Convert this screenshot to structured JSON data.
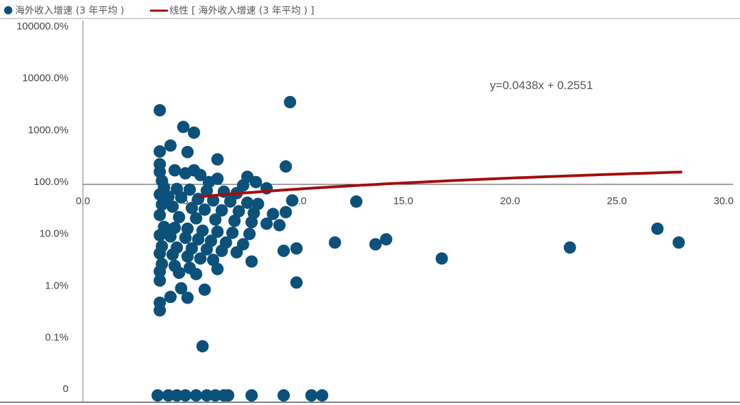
{
  "chart_data": {
    "type": "scatter",
    "legend": [
      {
        "label": "海外收入增速 (3 年平均 )",
        "marker": "dot",
        "color": "#0c5179"
      },
      {
        "label": "线性 [ 海外收入增速 (3 年平均 ) ]",
        "marker": "line",
        "color": "#a30d0d"
      }
    ],
    "x_axis": {
      "ticks": [
        0,
        5,
        10,
        15,
        20,
        25,
        30
      ],
      "tick_labels": [
        "0.0",
        "5.0",
        "10.0",
        "15.0",
        "20.0",
        "25.0",
        "30.0"
      ],
      "range": [
        0,
        30
      ]
    },
    "y_axis": {
      "scale": "log",
      "unit": "percent",
      "ticks": [
        0,
        0.1,
        1,
        10,
        100,
        1000,
        10000,
        100000
      ],
      "tick_labels": [
        "0",
        "0.1%",
        "1.0%",
        "10.0%",
        "100.0%",
        "1000.0%",
        "10000.0%",
        "100000.0%"
      ],
      "range": [
        0,
        100000
      ]
    },
    "annotation": "y=0.0438x + 0.2551",
    "trendline": {
      "slope": 0.0438,
      "intercept": 0.2551,
      "x_range": [
        5.5,
        28
      ]
    },
    "series": [
      {
        "name": "海外收入增速 (3 年平均 )",
        "color": "#0c5179",
        "points": [
          [
            3.6,
            2300
          ],
          [
            9.7,
            3300
          ],
          [
            4.7,
            1100
          ],
          [
            5.2,
            850
          ],
          [
            4.1,
            480
          ],
          [
            3.6,
            370
          ],
          [
            4.9,
            360
          ],
          [
            6.3,
            260
          ],
          [
            9.5,
            190
          ],
          [
            3.6,
            210
          ],
          [
            4.3,
            160
          ],
          [
            5.2,
            160
          ],
          [
            4.8,
            140
          ],
          [
            5.5,
            130
          ],
          [
            3.6,
            150
          ],
          [
            7.7,
            120
          ],
          [
            8.1,
            95
          ],
          [
            3.7,
            100
          ],
          [
            5.9,
            95
          ],
          [
            6.3,
            110
          ],
          [
            7.5,
            82
          ],
          [
            8.6,
            72
          ],
          [
            3.8,
            75
          ],
          [
            4.4,
            70
          ],
          [
            5.0,
            68
          ],
          [
            5.8,
            65
          ],
          [
            6.6,
            62
          ],
          [
            7.2,
            58
          ],
          [
            3.6,
            55
          ],
          [
            4.0,
            50
          ],
          [
            4.6,
            48
          ],
          [
            5.4,
            45
          ],
          [
            6.1,
            42
          ],
          [
            6.9,
            40
          ],
          [
            7.7,
            38
          ],
          [
            8.2,
            36
          ],
          [
            9.8,
            42
          ],
          [
            3.7,
            35
          ],
          [
            4.2,
            32
          ],
          [
            5.1,
            30
          ],
          [
            5.7,
            28
          ],
          [
            6.5,
            27
          ],
          [
            7.3,
            26
          ],
          [
            8.0,
            24
          ],
          [
            8.9,
            23
          ],
          [
            9.5,
            25
          ],
          [
            3.6,
            22
          ],
          [
            4.5,
            20
          ],
          [
            5.3,
            19
          ],
          [
            6.2,
            18
          ],
          [
            7.1,
            17
          ],
          [
            7.9,
            16
          ],
          [
            8.6,
            15
          ],
          [
            9.2,
            14
          ],
          [
            3.8,
            13
          ],
          [
            4.3,
            12.5
          ],
          [
            4.9,
            12
          ],
          [
            5.6,
            11
          ],
          [
            6.3,
            10.5
          ],
          [
            7.0,
            10
          ],
          [
            7.8,
            9.5
          ],
          [
            3.6,
            9
          ],
          [
            4.1,
            8.5
          ],
          [
            4.8,
            8
          ],
          [
            5.4,
            7.5
          ],
          [
            6.0,
            7
          ],
          [
            6.7,
            6.5
          ],
          [
            7.5,
            6
          ],
          [
            3.7,
            5.5
          ],
          [
            4.4,
            5.2
          ],
          [
            5.1,
            5
          ],
          [
            5.8,
            4.8
          ],
          [
            6.5,
            4.5
          ],
          [
            7.2,
            4.2
          ],
          [
            3.6,
            4
          ],
          [
            4.2,
            3.8
          ],
          [
            4.9,
            3.5
          ],
          [
            5.5,
            3.2
          ],
          [
            6.1,
            3
          ],
          [
            7.9,
            2.8
          ],
          [
            3.7,
            2.5
          ],
          [
            4.3,
            2.3
          ],
          [
            5.0,
            2.1
          ],
          [
            6.3,
            2.0
          ],
          [
            3.6,
            1.8
          ],
          [
            4.5,
            1.7
          ],
          [
            5.3,
            1.6
          ],
          [
            3.6,
            1.2
          ],
          [
            4.6,
            0.85
          ],
          [
            5.7,
            0.8
          ],
          [
            4.1,
            0.58
          ],
          [
            4.9,
            0.56
          ],
          [
            3.6,
            0.45
          ],
          [
            3.6,
            0.32
          ],
          [
            9.4,
            4.5
          ],
          [
            10.0,
            5.0
          ],
          [
            10.0,
            1.1
          ],
          [
            5.6,
            0.065
          ],
          [
            12.8,
            40
          ],
          [
            11.8,
            6.5
          ],
          [
            13.7,
            6.0
          ],
          [
            14.2,
            7.5
          ],
          [
            16.8,
            3.2
          ],
          [
            22.8,
            5.2
          ],
          [
            26.9,
            12
          ],
          [
            27.9,
            6.5
          ],
          [
            3.5,
            0
          ],
          [
            4.0,
            0
          ],
          [
            4.4,
            0
          ],
          [
            4.8,
            0
          ],
          [
            5.3,
            0
          ],
          [
            5.8,
            0
          ],
          [
            6.2,
            0
          ],
          [
            6.6,
            0
          ],
          [
            6.8,
            0
          ],
          [
            7.9,
            0
          ],
          [
            9.4,
            0
          ],
          [
            10.7,
            0
          ],
          [
            11.2,
            0
          ]
        ]
      }
    ]
  }
}
